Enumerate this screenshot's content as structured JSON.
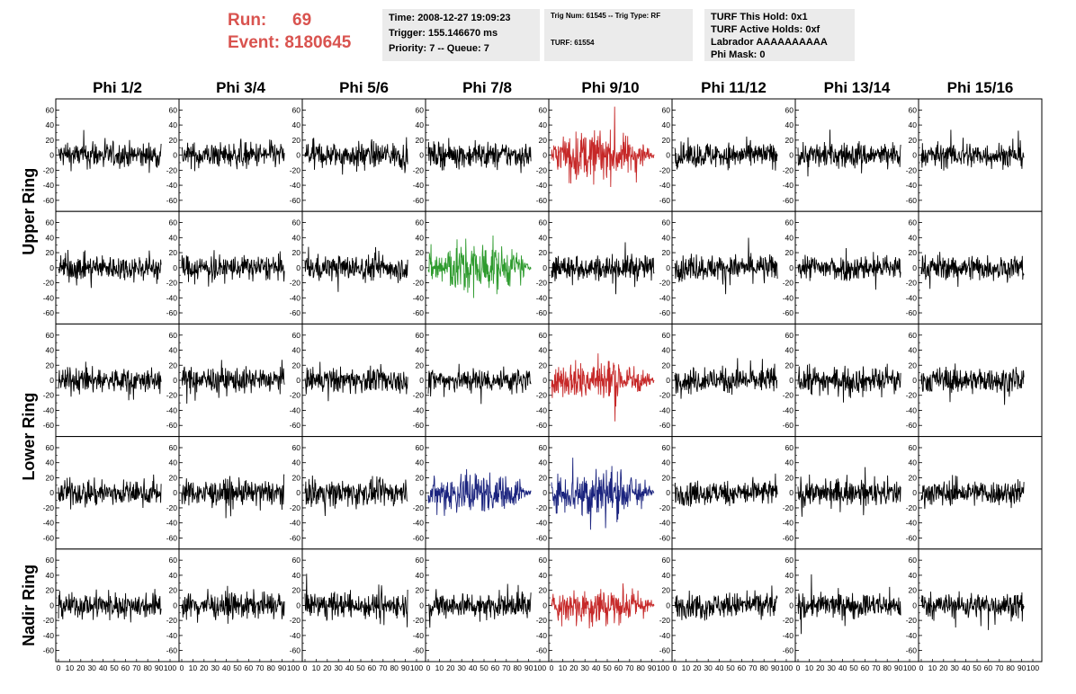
{
  "header": {
    "run_label": "Run:",
    "run_value": "69",
    "event_label": "Event:",
    "event_value": "8180645",
    "accent_color": "#d9534f"
  },
  "info_boxes": {
    "time": "Time: 2008-12-27 19:09:23",
    "trigger": "Trigger: 155.146670 ms",
    "priority": "Priority: 7 -- Queue: 7",
    "trig_num": "Trig Num: 61545 -- Trig Type: RF",
    "turf": "TURF: 61554",
    "turf_this_hold": "TURF This Hold: 0x1",
    "turf_active_holds": "TURF Active Holds: 0xf",
    "labrador": "Labrador AAAAAAAAAA",
    "phi_mask": "Phi Mask: 0"
  },
  "chart_data": {
    "type": "line",
    "columns": [
      "Phi 1/2",
      "Phi 3/4",
      "Phi 5/6",
      "Phi 7/8",
      "Phi 9/10",
      "Phi 11/12",
      "Phi 13/14",
      "Phi 15/16"
    ],
    "row_groups": [
      {
        "label": "Upper Ring",
        "rows": [
          0,
          1
        ]
      },
      {
        "label": "Lower Ring",
        "rows": [
          2,
          3
        ]
      },
      {
        "label": "Nadir Ring",
        "rows": [
          4
        ]
      }
    ],
    "xlim": [
      0,
      100
    ],
    "ylim": [
      -70,
      70
    ],
    "xticks": [
      0,
      10,
      20,
      30,
      40,
      50,
      60,
      70,
      80,
      90,
      100
    ],
    "yticks": [
      -60,
      -40,
      -20,
      0,
      20,
      40,
      60
    ],
    "default_amplitude": 15,
    "colors": {
      "default": "#000000",
      "red": "#c62828",
      "green": "#2e9b2e",
      "blue": "#1a237e"
    },
    "highlighted": [
      {
        "row": 0,
        "col": 4,
        "color": "red",
        "amplitude": 30
      },
      {
        "row": 1,
        "col": 3,
        "color": "green",
        "amplitude": 32
      },
      {
        "row": 2,
        "col": 4,
        "color": "red",
        "amplitude": 26
      },
      {
        "row": 3,
        "col": 3,
        "color": "blue",
        "amplitude": 26
      },
      {
        "row": 3,
        "col": 4,
        "color": "blue",
        "amplitude": 32
      },
      {
        "row": 4,
        "col": 4,
        "color": "red",
        "amplitude": 24
      }
    ]
  }
}
